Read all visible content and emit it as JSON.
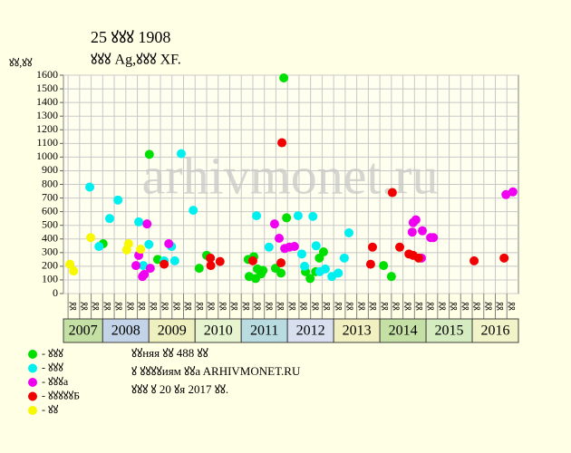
{
  "chart_data": {
    "type": "scatter",
    "title": "25 ꙋꙋꙋ 1908",
    "subtitle": "ꙋꙋꙋ Ag,ꙋꙋꙋ XF.",
    "y_label": "ꙋꙋ,ꙋꙋ",
    "watermark": "arhivmonet.ru",
    "notes": [
      "ꙋꙋняя ꙋꙋ 488 ꙋꙋ",
      "ꙋ ꙋꙋꙋꙋиям ꙋꙋa ARHIVMONET.RU",
      "ꙋꙋꙋ ꙋ 20 ꙋя 2017 ꙋꙋ."
    ],
    "xlim": [
      2007.15,
      2017.0
    ],
    "ylim": [
      0,
      1600
    ],
    "yticks": [
      0,
      100,
      200,
      300,
      400,
      500,
      600,
      700,
      800,
      900,
      1000,
      1100,
      1200,
      1300,
      1400,
      1500,
      1600
    ],
    "grid": true,
    "year_labels": [
      2007,
      2008,
      2009,
      2010,
      2011,
      2012,
      2013,
      2014,
      2015,
      2016
    ],
    "band_colors": [
      "#c4e0a4",
      "#c4d4e8",
      "#eef0c0",
      "#e6f4d0",
      "#b8dce0",
      "#d8e0f0",
      "#f0f0c0",
      "#c4e0a4",
      "#d4ecc0",
      "#f0f4c8"
    ],
    "quarter_ticks": [
      {
        "value": 2007.25,
        "label": "ꙋꙋ"
      },
      {
        "value": 2007.5,
        "label": "ꙋꙋ"
      },
      {
        "value": 2007.75,
        "label": "ꙋꙋ"
      },
      {
        "value": 2008.0,
        "label": "ꙋꙋ"
      },
      {
        "value": 2008.25,
        "label": "ꙋꙋ"
      },
      {
        "value": 2008.5,
        "label": "ꙋꙋ"
      },
      {
        "value": 2008.75,
        "label": "ꙋꙋ"
      },
      {
        "value": 2009.0,
        "label": "ꙋꙋ"
      },
      {
        "value": 2009.25,
        "label": "ꙋꙋ"
      },
      {
        "value": 2009.5,
        "label": "ꙋꙋ"
      },
      {
        "value": 2009.75,
        "label": "ꙋꙋ"
      },
      {
        "value": 2010.0,
        "label": "ꙋꙋ"
      },
      {
        "value": 2010.25,
        "label": "ꙋꙋ"
      },
      {
        "value": 2010.5,
        "label": "ꙋꙋ"
      },
      {
        "value": 2010.75,
        "label": "ꙋꙋ"
      },
      {
        "value": 2011.0,
        "label": "ꙋꙋ"
      },
      {
        "value": 2011.25,
        "label": "ꙋꙋ"
      },
      {
        "value": 2011.5,
        "label": "ꙋꙋ"
      },
      {
        "value": 2011.75,
        "label": "ꙋꙋ"
      },
      {
        "value": 2012.0,
        "label": "ꙋꙋ"
      },
      {
        "value": 2012.25,
        "label": "ꙋꙋ"
      },
      {
        "value": 2012.5,
        "label": "ꙋꙋ"
      },
      {
        "value": 2012.75,
        "label": "ꙋꙋ"
      },
      {
        "value": 2013.0,
        "label": "ꙋꙋ"
      },
      {
        "value": 2013.25,
        "label": "ꙋꙋ"
      },
      {
        "value": 2013.5,
        "label": "ꙋꙋ"
      },
      {
        "value": 2013.75,
        "label": "ꙋꙋ"
      },
      {
        "value": 2014.0,
        "label": "ꙋꙋ"
      },
      {
        "value": 2014.25,
        "label": "ꙋꙋ"
      },
      {
        "value": 2014.5,
        "label": "ꙋꙋ"
      },
      {
        "value": 2014.75,
        "label": "ꙋꙋ"
      },
      {
        "value": 2015.0,
        "label": "ꙋꙋ"
      },
      {
        "value": 2015.25,
        "label": "ꙋꙋ"
      },
      {
        "value": 2015.5,
        "label": "ꙋꙋ"
      },
      {
        "value": 2015.75,
        "label": "ꙋꙋ"
      },
      {
        "value": 2016.0,
        "label": "ꙋꙋ"
      },
      {
        "value": 2016.25,
        "label": "ꙋꙋ"
      },
      {
        "value": 2016.5,
        "label": "ꙋꙋ"
      },
      {
        "value": 2016.75,
        "label": "ꙋꙋ"
      }
    ],
    "series": [
      {
        "name": "- ꙋꙋꙋ",
        "color": "#00e000",
        "x": [
          2008.01,
          2009.01,
          2009.19,
          2010.09,
          2010.25,
          2011.15,
          2011.17,
          2011.27,
          2011.31,
          2011.35,
          2011.43,
          2011.47,
          2011.74,
          2011.86,
          2011.92,
          2011.98,
          2012.39,
          2012.49,
          2012.61,
          2012.69,
          2012.78,
          2014.08,
          2014.25
        ],
        "values": [
          365,
          1020,
          250,
          185,
          280,
          250,
          125,
          270,
          110,
          180,
          145,
          170,
          185,
          150,
          1580,
          555,
          160,
          110,
          160,
          260,
          305,
          205,
          125
        ]
      },
      {
        "name": "- ꙋꙋꙋ",
        "color": "#00f0f0",
        "x": [
          2007.72,
          2007.92,
          2008.15,
          2008.33,
          2008.78,
          2008.88,
          2009.0,
          2009.33,
          2009.49,
          2009.56,
          2009.7,
          2009.96,
          2011.33,
          2011.6,
          2012.23,
          2012.31,
          2012.37,
          2012.55,
          2012.62,
          2012.7,
          2012.82,
          2012.96,
          2013.1,
          2013.23,
          2013.33
        ],
        "values": [
          780,
          345,
          550,
          685,
          525,
          205,
          360,
          240,
          345,
          240,
          1025,
          610,
          570,
          340,
          570,
          290,
          200,
          565,
          350,
          160,
          180,
          125,
          150,
          260,
          445
        ]
      },
      {
        "name": "- ꙋꙋꙋa",
        "color": "#f000f0",
        "x": [
          2008.72,
          2008.78,
          2008.86,
          2008.9,
          2008.96,
          2009.03,
          2009.43,
          2011.72,
          2011.82,
          2011.94,
          2012.04,
          2012.15,
          2014.72,
          2014.78,
          2014.7,
          2014.92,
          2015.1,
          2015.16,
          2014.9,
          2016.73,
          2016.88
        ],
        "values": [
          205,
          280,
          125,
          140,
          510,
          185,
          365,
          510,
          405,
          330,
          340,
          345,
          520,
          540,
          450,
          460,
          410,
          410,
          260,
          725,
          745
        ]
      },
      {
        "name": "- ꙋꙋꙋꙋꙋБ",
        "color": "#f00000",
        "x": [
          2009.33,
          2010.33,
          2010.34,
          2010.54,
          2011.25,
          2011.88,
          2011.86,
          2013.8,
          2013.84,
          2014.27,
          2014.43,
          2014.63,
          2014.72,
          2014.84,
          2016.04,
          2016.69
        ],
        "values": [
          215,
          260,
          205,
          235,
          240,
          1105,
          225,
          215,
          340,
          740,
          340,
          290,
          280,
          260,
          240,
          260
        ]
      },
      {
        "name": "- ꙋꙋ",
        "color": "#f8f800",
        "x": [
          2007.29,
          2007.37,
          2007.74,
          2008.52,
          2008.56,
          2008.82
        ],
        "values": [
          215,
          165,
          410,
          320,
          365,
          325
        ]
      }
    ]
  }
}
